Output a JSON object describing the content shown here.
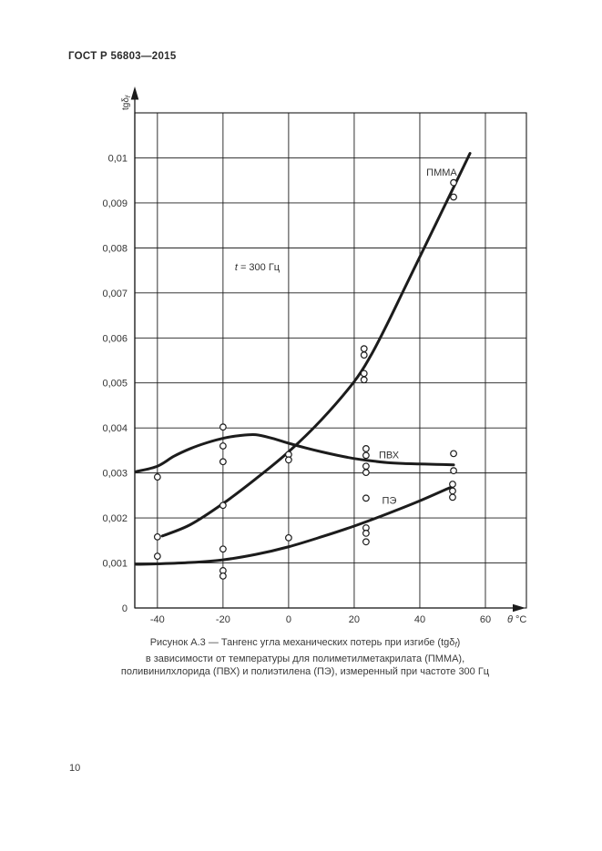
{
  "page": {
    "header": "ГОСТ Р 56803—2015",
    "page_number": "10",
    "caption": {
      "line1_pre": "Рисунок А.3 — Тангенс угла механических потерь при изгибе (tgδ",
      "line1_sub": "f",
      "line1_post": ")",
      "line2": "в зависимости от температуры для полиметилметакрилата (ПММА),",
      "line3": "поливинилхлорида (ПВХ) и полиэтилена (ПЭ), измеренный при частоте 300 Гц"
    }
  },
  "chart_data": {
    "type": "line",
    "title": "",
    "xlabel": {
      "italic": "θ",
      "unit": " °C"
    },
    "ylabel": {
      "main": "tgδ",
      "sub": "f"
    },
    "annotation": {
      "italic": "t",
      "rest": " = 300 Гц",
      "pos": [
        -16.4,
        0.0075
      ]
    },
    "xlim": [
      -46.9,
      72.5
    ],
    "ylim": [
      0,
      0.011
    ],
    "grid": true,
    "x_ticks": [
      {
        "v": -40,
        "label": "-40"
      },
      {
        "v": -20,
        "label": "-20"
      },
      {
        "v": 0,
        "label": "0"
      },
      {
        "v": 20,
        "label": "20"
      },
      {
        "v": 40,
        "label": "40"
      },
      {
        "v": 60,
        "label": "60"
      }
    ],
    "y_ticks": [
      {
        "v": 0,
        "label": "0"
      },
      {
        "v": 0.001,
        "label": "0,001"
      },
      {
        "v": 0.002,
        "label": "0,002"
      },
      {
        "v": 0.003,
        "label": "0,003"
      },
      {
        "v": 0.004,
        "label": "0,004"
      },
      {
        "v": 0.005,
        "label": "0,005"
      },
      {
        "v": 0.006,
        "label": "0,006"
      },
      {
        "v": 0.007,
        "label": "0,007"
      },
      {
        "v": 0.008,
        "label": "0,008"
      },
      {
        "v": 0.009,
        "label": "0,009"
      },
      {
        "v": 0.01,
        "label": "0,01"
      }
    ],
    "series": [
      {
        "id": "pmma",
        "label": "ПММА",
        "label_pos": [
          42,
          0.0096
        ],
        "curve": [
          [
            -38.5,
            0.0016
          ],
          [
            -30,
            0.00185
          ],
          [
            -20,
            0.00232
          ],
          [
            -10,
            0.00287
          ],
          [
            0,
            0.00347
          ],
          [
            10,
            0.00418
          ],
          [
            20,
            0.00503
          ],
          [
            25,
            0.0056
          ],
          [
            30,
            0.0063
          ],
          [
            35,
            0.00705
          ],
          [
            40,
            0.0078
          ],
          [
            45,
            0.00855
          ],
          [
            50,
            0.0093
          ],
          [
            55.3,
            0.0101
          ]
        ],
        "points": [
          [
            -40,
            0.00158
          ],
          [
            -20,
            0.00228
          ],
          [
            23,
            0.00576
          ],
          [
            23,
            0.00562
          ],
          [
            23,
            0.00521
          ],
          [
            23,
            0.00507
          ],
          [
            50.3,
            0.00945
          ],
          [
            50.3,
            0.00913
          ]
        ]
      },
      {
        "id": "pvc",
        "label": "ПВХ",
        "label_pos": [
          27.5,
          0.00333
        ],
        "curve": [
          [
            -46.5,
            0.00303
          ],
          [
            -40,
            0.00315
          ],
          [
            -35,
            0.00337
          ],
          [
            -30,
            0.00354
          ],
          [
            -25,
            0.00367
          ],
          [
            -20,
            0.00377
          ],
          [
            -15,
            0.00383
          ],
          [
            -10,
            0.00385
          ],
          [
            -5,
            0.00377
          ],
          [
            0,
            0.00366
          ],
          [
            5,
            0.00356
          ],
          [
            10,
            0.00347
          ],
          [
            15,
            0.00339
          ],
          [
            20,
            0.00332
          ],
          [
            25,
            0.00327
          ],
          [
            30,
            0.00323
          ],
          [
            35,
            0.00321
          ],
          [
            40,
            0.0032
          ],
          [
            45,
            0.00319
          ],
          [
            50.3,
            0.00318
          ]
        ],
        "points": [
          [
            -40,
            0.00291
          ],
          [
            -20,
            0.00402
          ],
          [
            -20,
            0.0036
          ],
          [
            -20,
            0.00325
          ],
          [
            0,
            0.00341
          ],
          [
            0,
            0.00329
          ],
          [
            23.6,
            0.00354
          ],
          [
            23.6,
            0.00339
          ],
          [
            23.6,
            0.00315
          ],
          [
            23.6,
            0.00301
          ],
          [
            50.3,
            0.00343
          ],
          [
            50.3,
            0.00305
          ]
        ]
      },
      {
        "id": "pe",
        "label": "ПЭ",
        "label_pos": [
          28.5,
          0.00232
        ],
        "curve": [
          [
            -46.5,
            0.00097
          ],
          [
            -40,
            0.00098
          ],
          [
            -30,
            0.00101
          ],
          [
            -20,
            0.00107
          ],
          [
            -10,
            0.00119
          ],
          [
            0,
            0.00136
          ],
          [
            10,
            0.00158
          ],
          [
            20,
            0.00182
          ],
          [
            30,
            0.00209
          ],
          [
            40,
            0.00238
          ],
          [
            50,
            0.0027
          ]
        ],
        "points": [
          [
            -40,
            0.00115
          ],
          [
            -20,
            0.00131
          ],
          [
            -20,
            0.00083
          ],
          [
            -20,
            0.00071
          ],
          [
            0,
            0.00156
          ],
          [
            23.6,
            0.00244
          ],
          [
            23.6,
            0.00178
          ],
          [
            23.6,
            0.00166
          ],
          [
            23.6,
            0.00147
          ],
          [
            50,
            0.00275
          ],
          [
            50,
            0.0026
          ],
          [
            50,
            0.00246
          ]
        ]
      }
    ],
    "colors": {
      "ink": "#1c1c1c",
      "text": "#333333",
      "point_fill": "#ffffff"
    }
  }
}
